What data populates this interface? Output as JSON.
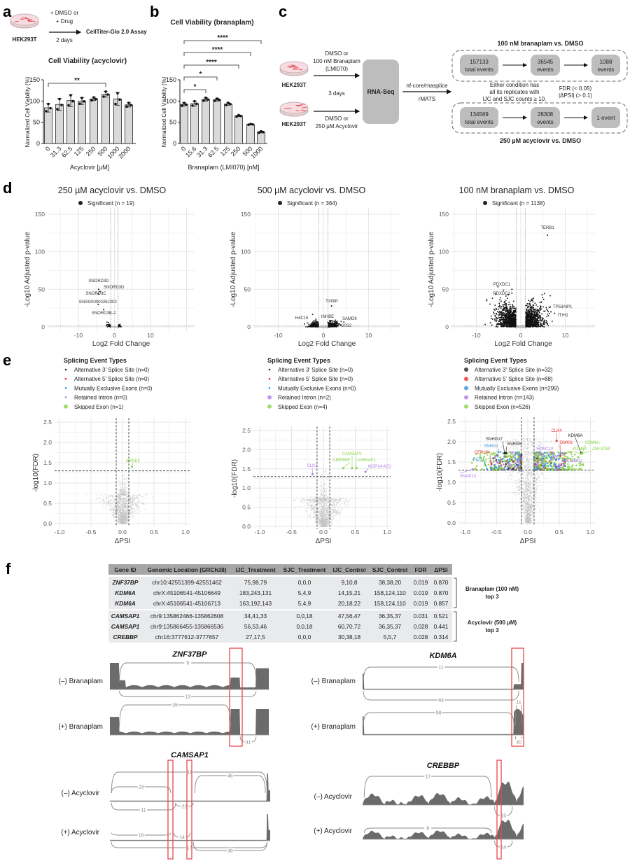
{
  "panel_labels": {
    "a": "a",
    "b": "b",
    "c": "c",
    "d": "d",
    "e": "e",
    "f": "f"
  },
  "panel_a": {
    "cell_line": "HEK293T",
    "treatment_line1": "+ DMSO or",
    "treatment_line2": "+ Drug",
    "duration": "2 days",
    "assay": "CellTiter-Glo 2.0 Assay"
  },
  "panel_c": {
    "cell_line": "HEK293T",
    "top_treatment": [
      "DMSO or",
      "100 nM Branaplam",
      "(LMI070)"
    ],
    "duration": "3 days",
    "bottom_treatment": [
      "DMSO or",
      "250 µM Acyclovir"
    ],
    "sequencing": "RNA-Seq",
    "pipeline": "nf-core/rnasplice",
    "tool": "rMATS",
    "filter_text": [
      "Either condition has",
      "all its replicates with",
      "IJC and SJC counts ≥ 10."
    ],
    "threshold_text": [
      "FDR (< 0.05)",
      "|ΔPSI| (> 0.1)"
    ],
    "branaplam_flow": {
      "title": "100 nM branaplam vs. DMSO",
      "steps": [
        [
          "157133",
          "total events"
        ],
        [
          "36545",
          "events"
        ],
        [
          "1088",
          "events"
        ]
      ]
    },
    "acyclovir_flow": {
      "title": "250 µM acyclovir vs. DMSO",
      "steps": [
        [
          "134569",
          "total events"
        ],
        [
          "28308",
          "events"
        ],
        [
          "1 event"
        ]
      ]
    }
  },
  "chart_data": [
    {
      "id": "viability-acyclovir",
      "type": "bar",
      "title": "Cell Viability (acyclovir)",
      "xlabel": "Acyclovir [µM]",
      "ylabel": "Normalized Cell Viability (%)",
      "categories": [
        "0",
        "31.3",
        "62.5",
        "125",
        "250",
        "500",
        "1000",
        "2000"
      ],
      "values": [
        84,
        92,
        101,
        100,
        105,
        116,
        105,
        91
      ],
      "error_sd": [
        10,
        14,
        14,
        8,
        4,
        7,
        15,
        5
      ],
      "ylim": [
        0,
        150
      ],
      "yticks": [
        "0",
        "50",
        "100",
        "150"
      ],
      "significance": [
        {
          "from": "0",
          "to": "500",
          "label": "**"
        }
      ]
    },
    {
      "id": "viability-branaplam",
      "type": "bar",
      "title": "Cell Viability (branaplam)",
      "xlabel": "Branaplam (LMI070) [nM]",
      "ylabel": "Normalized Cell Viability (%)",
      "categories": [
        "0",
        "15.6",
        "31.3",
        "62.5",
        "125",
        "250",
        "500",
        "1000"
      ],
      "values": [
        92,
        94,
        104,
        103,
        93,
        65,
        45,
        27
      ],
      "error_sd": [
        4,
        6,
        4,
        3,
        3,
        2,
        1,
        2
      ],
      "ylim": [
        0,
        150
      ],
      "yticks": [
        "0",
        "50",
        "100",
        "150"
      ],
      "significance": [
        {
          "from": "0",
          "to": "31.3",
          "label": "*"
        },
        {
          "from": "0",
          "to": "62.5",
          "label": "*"
        },
        {
          "from": "0",
          "to": "250",
          "label": "****"
        },
        {
          "from": "0",
          "to": "500",
          "label": "****"
        },
        {
          "from": "0",
          "to": "1000",
          "label": "****"
        }
      ]
    },
    {
      "id": "volcano-acyclovir-250",
      "type": "scatter",
      "title": "250 µM acyclovir vs. DMSO",
      "legend": "Significant (n = 19)",
      "xlabel": "Log2 Fold Change",
      "ylabel": "-Log10 Adjusted p-value",
      "xticks": [
        "-10",
        "0",
        "10"
      ],
      "yticks": [
        "0",
        "50",
        "100",
        "150"
      ],
      "ylim": [
        0,
        150
      ],
      "labeled_points": [
        {
          "label": "SNORD3D",
          "x": -4.4,
          "y": 50
        },
        {
          "label": "SNORD3D",
          "x": -4.0,
          "y": 47
        },
        {
          "label": "SNORD3C",
          "x": -4.5,
          "y": 44
        },
        {
          "label": "ENSG00000262202",
          "x": -4.5,
          "y": 30
        },
        {
          "label": "SNORD3B-2",
          "x": -3.0,
          "y": 23
        }
      ]
    },
    {
      "id": "volcano-acyclovir-500",
      "type": "scatter",
      "title": "500 µM acyclovir vs. DMSO",
      "legend": "Significant (n = 364)",
      "xlabel": "Log2 Fold Change",
      "ylabel": "-Log10 Adjusted p-value",
      "xticks": [
        "-10",
        "0",
        "10"
      ],
      "yticks": [
        "0",
        "50",
        "100",
        "150"
      ],
      "ylim": [
        0,
        150
      ],
      "labeled_points": [
        {
          "label": "TXNIP",
          "x": 1.8,
          "y": 28
        },
        {
          "label": "H4C15",
          "x": -4.2,
          "y": 4
        },
        {
          "label": "INHBE",
          "x": 1.0,
          "y": 6
        },
        {
          "label": "SAMD9",
          "x": 3.5,
          "y": 4
        },
        {
          "label": "G0S2",
          "x": 3.0,
          "y": 1
        }
      ]
    },
    {
      "id": "volcano-branaplam-100",
      "type": "scatter",
      "title": "100 nM branaplam vs. DMSO",
      "legend": "Significant (n = 1138)",
      "xlabel": "Log2 Fold Change",
      "ylabel": "-Log10 Adjusted p-value",
      "xticks": [
        "-10",
        "0",
        "10"
      ],
      "yticks": [
        "0",
        "50",
        "100",
        "150"
      ],
      "ylim": [
        0,
        150
      ],
      "labeled_points": [
        {
          "label": "TERB1",
          "x": 6.0,
          "y": 122
        },
        {
          "label": "PDXDC1",
          "x": -2.0,
          "y": 50
        },
        {
          "label": "PDXDC1",
          "x": -2.0,
          "y": 45
        },
        {
          "label": "TP53AIP1",
          "x": 6.8,
          "y": 20
        },
        {
          "label": "ITIH1",
          "x": 7.6,
          "y": 18
        }
      ]
    },
    {
      "id": "splicing-acyclovir-250",
      "type": "scatter",
      "legend_title": "Splicing Event Types",
      "legend": [
        {
          "label": "Alternative 3' Splice Site (n=0)",
          "color": "#222222"
        },
        {
          "label": "Alternative 5' Splice Site (n=0)",
          "color": "#e8312a"
        },
        {
          "label": "Mutually Exclusive Exons (n=0)",
          "color": "#3a8fd8"
        },
        {
          "label": "Retained Intron (n=0)",
          "color": "#b07be8"
        },
        {
          "label": "Skipped Exon (n=1)",
          "color": "#86d447"
        }
      ],
      "xlabel": "ΔPSI",
      "ylabel": "-log10(FDR)",
      "xticks": [
        "-1.0",
        "-0.5",
        "0.0",
        "0.5",
        "1.0"
      ],
      "yticks": [
        "0.0",
        "0.5",
        "1.0",
        "1.5",
        "2.0",
        "2.5"
      ],
      "xlim": [
        -1,
        1
      ],
      "ylim": [
        0,
        2.5
      ],
      "labeled_points": [
        {
          "label": "BRSK2",
          "x": 0.15,
          "y": 1.4,
          "color": "#86d447"
        }
      ]
    },
    {
      "id": "splicing-acyclovir-500",
      "type": "scatter",
      "legend_title": "Splicing Event Types",
      "legend": [
        {
          "label": "Alternative 3' Splice Site (n=0)",
          "color": "#222222"
        },
        {
          "label": "Alternative 5' Splice Site (n=0)",
          "color": "#e8312a"
        },
        {
          "label": "Mutually Exclusive Exons (n=0)",
          "color": "#3a8fd8"
        },
        {
          "label": "Retained Intron (n=2)",
          "color": "#b07be8"
        },
        {
          "label": "Skipped Exon (n=4)",
          "color": "#86d447"
        }
      ],
      "xlabel": "ΔPSI",
      "ylabel": "-log10(FDR)",
      "xticks": [
        "-1.0",
        "-0.5",
        "0.0",
        "0.5",
        "1.0"
      ],
      "yticks": [
        "0.0",
        "0.5",
        "1.0",
        "1.5",
        "2.0",
        "2.5"
      ],
      "xlim": [
        -1,
        1
      ],
      "ylim": [
        0,
        2.5
      ],
      "labeled_points": [
        {
          "label": "CAMSAP1",
          "x": 0.45,
          "y": 1.52,
          "color": "#86d447"
        },
        {
          "label": "CAMSAP1",
          "x": 0.52,
          "y": 1.52,
          "color": "#86d447"
        },
        {
          "label": "CREBBP",
          "x": 0.31,
          "y": 1.52,
          "color": "#86d447"
        },
        {
          "label": "NOP14-AS1",
          "x": 0.66,
          "y": 1.42,
          "color": "#b07be8"
        },
        {
          "label": "CLK1",
          "x": -0.17,
          "y": 1.36,
          "color": "#b07be8"
        }
      ]
    },
    {
      "id": "splicing-branaplam-100",
      "type": "scatter",
      "legend_title": "Splicing Event Types",
      "legend": [
        {
          "label": "Alternative 3' Splice Site (n=32)",
          "color": "#222222"
        },
        {
          "label": "Alternative 5' Splice Site (n=88)",
          "color": "#e8312a"
        },
        {
          "label": "Mutually Exclusive Exons (n=299)",
          "color": "#3a8fd8"
        },
        {
          "label": "Retained Intron (n=143)",
          "color": "#b07be8"
        },
        {
          "label": "Skipped Exon (n=526)",
          "color": "#86d447"
        }
      ],
      "xlabel": "ΔPSI",
      "ylabel": "-log10(FDR)",
      "xticks": [
        "-1.0",
        "-0.5",
        "0.0",
        "0.5",
        "1.0"
      ],
      "yticks": [
        "0.0",
        "0.5",
        "1.0",
        "1.5",
        "2.0",
        "2.5"
      ],
      "xlim": [
        -1,
        1
      ],
      "ylim": [
        0,
        2.5
      ],
      "labeled_points": [
        {
          "label": "CLK4",
          "x": 0.46,
          "y": 2.02,
          "color": "#e8312a"
        },
        {
          "label": "DMKN",
          "x": 0.52,
          "y": 1.65,
          "color": "#e8312a"
        },
        {
          "label": "KDM6A",
          "x": 0.85,
          "y": 1.72,
          "color": "#222222"
        },
        {
          "label": "KDM6A",
          "x": 0.87,
          "y": 1.72,
          "color": "#86d447"
        },
        {
          "label": "KDM6A",
          "x": 0.85,
          "y": 1.7,
          "color": "#86d447"
        },
        {
          "label": "ZNF37BP",
          "x": 0.87,
          "y": 1.72,
          "color": "#86d447"
        },
        {
          "label": "HDAC10",
          "x": 0.42,
          "y": 1.6,
          "color": "#b07be8"
        },
        {
          "label": "JPX",
          "x": 0.45,
          "y": 1.55,
          "color": "#3a8fd8"
        },
        {
          "label": "HSD11B1L",
          "x": 0.5,
          "y": 1.4,
          "color": "#b07be8"
        },
        {
          "label": "SNHG17",
          "x": -0.37,
          "y": 1.72,
          "color": "#222222"
        },
        {
          "label": "SNHG5",
          "x": -0.35,
          "y": 1.72,
          "color": "#222222"
        },
        {
          "label": "SNHG1",
          "x": -0.48,
          "y": 1.65,
          "color": "#3a8fd8"
        },
        {
          "label": "CEP104",
          "x": -0.58,
          "y": 1.45,
          "color": "#e8312a"
        },
        {
          "label": "RCC1",
          "x": -0.65,
          "y": 1.32,
          "color": "#3a8fd8"
        },
        {
          "label": "SNAP23",
          "x": -0.88,
          "y": 1.32,
          "color": "#b07be8"
        }
      ]
    }
  ],
  "panel_f": {
    "table": {
      "headers": [
        "Gene ID",
        "Genomic Location (GRCh38)",
        "IJC_Treatment",
        "SJC_Treatment",
        "IJC_Control",
        "SJC_Control",
        "FDR",
        "ΔPSI"
      ],
      "groups": [
        {
          "label_line1": "Branaplam (100 nM)",
          "label_line2": "top 3",
          "rows": [
            [
              "ZNF37BP",
              "chr10:42551399-42551462",
              "75,98,79",
              "0,0,0",
              "9,10,8",
              "38,38,20",
              "0.019",
              "0.870"
            ],
            [
              "KDM6A",
              "chrX:45106541-45106649",
              "183,243,131",
              "5,4,9",
              "14,15,21",
              "158,124,110",
              "0.019",
              "0.870"
            ],
            [
              "KDM6A",
              "chrX:45106541-45106713",
              "163,192,143",
              "5,4,9",
              "20,18,22",
              "158,124,110",
              "0.019",
              "0.857"
            ]
          ]
        },
        {
          "label_line1": "Acyclovir (500 µM)",
          "label_line2": "top 3",
          "rows": [
            [
              "CAMSAP1",
              "chr9:135862466-135862608",
              "34,41,33",
              "0,0,18",
              "47,56,47",
              "36,35,37",
              "0.031",
              "0.521"
            ],
            [
              "CAMSAP1",
              "chr9:135866455-135866536",
              "56,53,46",
              "0,0,18",
              "60,70,72",
              "36,35,37",
              "0.028",
              "0.441"
            ],
            [
              "CREBBP",
              "chr16:3777612-3777657",
              "27,17,5",
              "0,0,0",
              "30,38,18",
              "5,5,7",
              "0.028",
              "0.314"
            ]
          ]
        }
      ]
    },
    "sashimi": [
      {
        "gene": "ZNF37BP",
        "tracks": [
          {
            "condition": "(–) Branaplam",
            "junction_counts": [
              "9",
              "13"
            ]
          },
          {
            "condition": "(+) Branaplam",
            "junction_counts": [
              "35",
              "41"
            ]
          }
        ]
      },
      {
        "gene": "KDM6A",
        "tracks": [
          {
            "condition": "(–) Branaplam",
            "junction_counts": [
              "11",
              "64"
            ]
          },
          {
            "condition": "(+) Branaplam",
            "junction_counts": [
              "98",
              "11",
              "40"
            ]
          }
        ]
      },
      {
        "gene": "CAMSAP1",
        "tracks": [
          {
            "condition": "(–) Acyclovir",
            "junction_counts": [
              "32",
              "23",
              "46",
              "11",
              "22"
            ]
          },
          {
            "condition": "(+) Acyclovir",
            "junction_counts": [
              "16",
              "14",
              "17",
              "38"
            ]
          }
        ]
      },
      {
        "gene": "CREBBP",
        "tracks": [
          {
            "condition": "(–) Acyclovir",
            "junction_counts": [
              "12",
              "15"
            ]
          },
          {
            "condition": "(+) Acyclovir",
            "junction_counts": [
              "8",
              "14"
            ]
          }
        ]
      }
    ],
    "highlight_color": "#e8474a"
  }
}
